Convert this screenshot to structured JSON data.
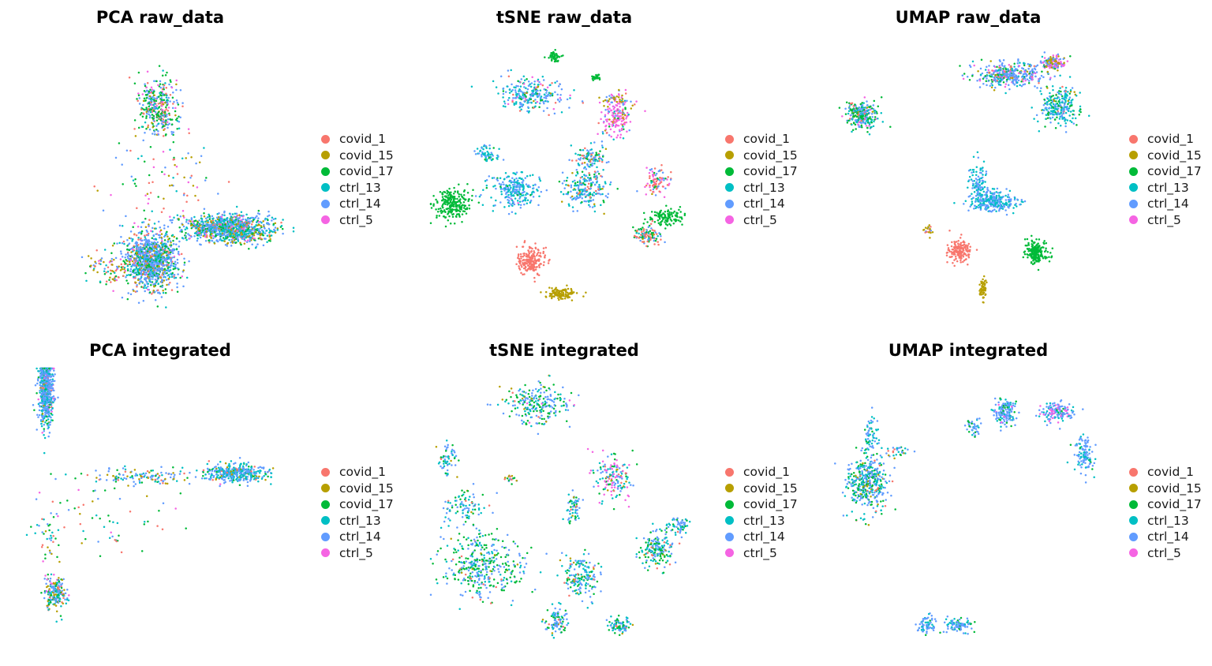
{
  "palette": {
    "covid_1": "#F8766D",
    "covid_15": "#B79F00",
    "covid_17": "#00BA38",
    "ctrl_13": "#00BFC4",
    "ctrl_14": "#619CFF",
    "ctrl_5": "#F564E3"
  },
  "chart_data": [
    {
      "type": "scatter",
      "title": "PCA raw_data",
      "xlabel": "",
      "ylabel": "",
      "axes_visible": false,
      "grid": false,
      "legend_position": "right",
      "legend": [
        "covid_1",
        "covid_15",
        "covid_17",
        "ctrl_13",
        "ctrl_14",
        "ctrl_5"
      ]
    },
    {
      "type": "scatter",
      "title": "tSNE raw_data",
      "xlabel": "",
      "ylabel": "",
      "axes_visible": false,
      "grid": false,
      "legend_position": "right",
      "legend": [
        "covid_1",
        "covid_15",
        "covid_17",
        "ctrl_13",
        "ctrl_14",
        "ctrl_5"
      ]
    },
    {
      "type": "scatter",
      "title": "UMAP raw_data",
      "xlabel": "",
      "ylabel": "",
      "axes_visible": false,
      "grid": false,
      "legend_position": "right",
      "legend": [
        "covid_1",
        "covid_15",
        "covid_17",
        "ctrl_13",
        "ctrl_14",
        "ctrl_5"
      ]
    },
    {
      "type": "scatter",
      "title": "PCA integrated",
      "xlabel": "",
      "ylabel": "",
      "axes_visible": false,
      "grid": false,
      "legend_position": "right",
      "legend": [
        "covid_1",
        "covid_15",
        "covid_17",
        "ctrl_13",
        "ctrl_14",
        "ctrl_5"
      ]
    },
    {
      "type": "scatter",
      "title": "tSNE integrated",
      "xlabel": "",
      "ylabel": "",
      "axes_visible": false,
      "grid": false,
      "legend_position": "right",
      "legend": [
        "covid_1",
        "covid_15",
        "covid_17",
        "ctrl_13",
        "ctrl_14",
        "ctrl_5"
      ]
    },
    {
      "type": "scatter",
      "title": "UMAP integrated",
      "xlabel": "",
      "ylabel": "",
      "axes_visible": false,
      "grid": false,
      "legend_position": "right",
      "legend": [
        "covid_1",
        "covid_15",
        "covid_17",
        "ctrl_13",
        "ctrl_14",
        "ctrl_5"
      ]
    }
  ]
}
